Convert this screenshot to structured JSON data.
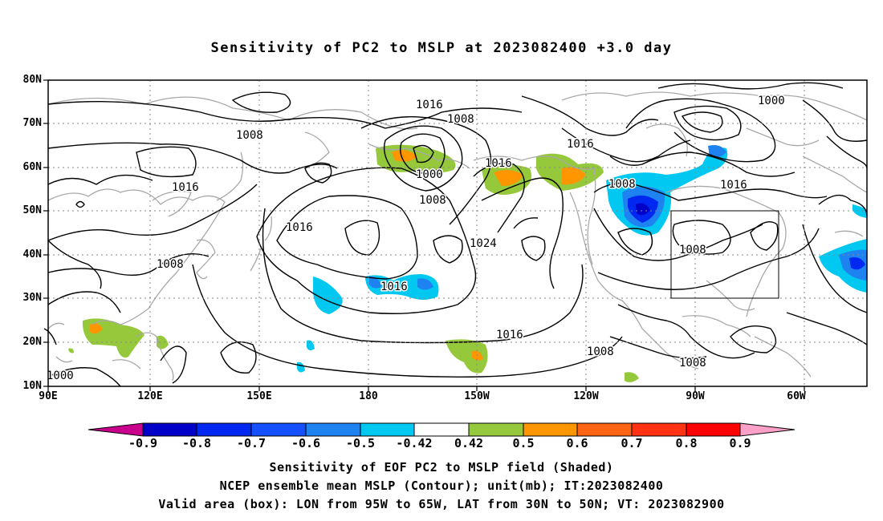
{
  "title": "Sensitivity of PC2 to MSLP at 2023082400 +3.0 day",
  "lat_labels": [
    "80N",
    "70N",
    "60N",
    "50N",
    "40N",
    "30N",
    "20N",
    "10N"
  ],
  "lon_labels": [
    "90E",
    "120E",
    "150E",
    "180",
    "150W",
    "120W",
    "90W",
    "60W"
  ],
  "contour_labels": [
    "1016",
    "1008",
    "1000",
    "1016",
    "1008",
    "1016",
    "1008",
    "1008",
    "1016",
    "1016",
    "1008",
    "1016",
    "1024",
    "1016",
    "1016",
    "1008",
    "1008",
    "1008",
    "1000"
  ],
  "colorbar": {
    "labels": [
      "-0.9",
      "-0.8",
      "-0.7",
      "-0.6",
      "-0.5",
      "-0.42",
      "0.42",
      "0.5",
      "0.6",
      "0.7",
      "0.8",
      "0.9"
    ],
    "colors": [
      "#c8008c",
      "#0000c8",
      "#0028f0",
      "#1450ff",
      "#1e82f0",
      "#00c8f0",
      "#ffffff",
      "#96c83c",
      "#ff9600",
      "#ff6414",
      "#ff3214",
      "#ff0000",
      "#ffa0c8"
    ]
  },
  "captions": [
    "Sensitivity of EOF PC2 to MSLP field (Shaded)",
    "NCEP ensemble mean MSLP (Contour); unit(mb); IT:2023082400",
    "Valid area (box): LON from 95W to 65W, LAT from 30N to 50N; VT: 2023082900"
  ]
}
